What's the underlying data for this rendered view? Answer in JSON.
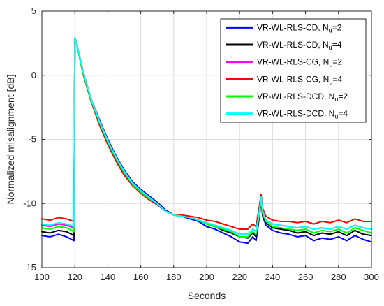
{
  "chart_data": {
    "type": "line",
    "xlabel": "Seconds",
    "ylabel": "Normalized misalignment [dB]",
    "xlim": [
      100,
      300
    ],
    "ylim": [
      -15,
      5
    ],
    "xticks": [
      100,
      120,
      140,
      160,
      180,
      200,
      220,
      240,
      260,
      280,
      300
    ],
    "yticks": [
      5,
      0,
      -5,
      -10,
      -15
    ],
    "grid": true,
    "legend_position": "top-right",
    "legend": [
      {
        "text": "VR-WL-RLS-CD, N",
        "sub": "u",
        "suffix": "=2",
        "color": "#0000ff"
      },
      {
        "text": "VR-WL-RLS-CD, N",
        "sub": "u",
        "suffix": "=4",
        "color": "#000000"
      },
      {
        "text": "VR-WL-RLS-CG, N",
        "sub": "u",
        "suffix": "=2",
        "color": "#ff00ff"
      },
      {
        "text": "VR-WL-RLS-CG, N",
        "sub": "u",
        "suffix": "=4",
        "color": "#ff0000"
      },
      {
        "text": "VR-WL-RLS-DCD, N",
        "sub": "u",
        "suffix": "=2",
        "color": "#00ff00"
      },
      {
        "text": "VR-WL-RLS-DCD, N",
        "sub": "u",
        "suffix": "=4",
        "color": "#00ffff"
      }
    ],
    "x": [
      100,
      105,
      110,
      115,
      119.5,
      120,
      121,
      122,
      125,
      130,
      135,
      140,
      145,
      150,
      155,
      160,
      165,
      170,
      175,
      180,
      185,
      190,
      195,
      200,
      205,
      210,
      215,
      220,
      225,
      228,
      230,
      232,
      233,
      234,
      236,
      240,
      245,
      250,
      255,
      260,
      265,
      270,
      275,
      280,
      285,
      290,
      295,
      300
    ],
    "series": [
      {
        "color": "#0000ff",
        "values": [
          -12.5,
          -12.6,
          -12.4,
          -12.6,
          -12.9,
          2.9,
          2.6,
          2.0,
          0.3,
          -1.9,
          -3.5,
          -5.0,
          -6.3,
          -7.4,
          -8.3,
          -8.9,
          -9.4,
          -9.9,
          -10.5,
          -10.9,
          -11.0,
          -11.2,
          -11.4,
          -11.8,
          -12.0,
          -12.3,
          -12.6,
          -13.0,
          -13.1,
          -12.6,
          -12.9,
          -11.0,
          -9.8,
          -11.0,
          -11.7,
          -12.1,
          -12.3,
          -12.4,
          -12.6,
          -12.5,
          -12.9,
          -12.7,
          -12.8,
          -12.6,
          -12.9,
          -12.5,
          -12.8,
          -13.0
        ]
      },
      {
        "color": "#000000",
        "values": [
          -12.2,
          -12.3,
          -12.1,
          -12.2,
          -12.5,
          2.9,
          2.6,
          1.9,
          0.2,
          -2.0,
          -3.7,
          -5.2,
          -6.5,
          -7.6,
          -8.5,
          -9.1,
          -9.6,
          -10.0,
          -10.6,
          -10.9,
          -11.0,
          -11.1,
          -11.3,
          -11.6,
          -11.8,
          -12.1,
          -12.3,
          -12.6,
          -12.7,
          -12.3,
          -12.6,
          -10.9,
          -9.7,
          -10.9,
          -11.5,
          -11.9,
          -12.0,
          -12.1,
          -12.3,
          -12.2,
          -12.5,
          -12.3,
          -12.4,
          -12.2,
          -12.5,
          -12.1,
          -12.4,
          -12.5
        ]
      },
      {
        "color": "#ff00ff",
        "values": [
          -11.7,
          -11.8,
          -11.6,
          -11.7,
          -11.9,
          2.9,
          2.6,
          1.9,
          0.2,
          -2.0,
          -3.7,
          -5.2,
          -6.5,
          -7.6,
          -8.5,
          -9.1,
          -9.6,
          -10.0,
          -10.6,
          -10.9,
          -11.0,
          -11.1,
          -11.3,
          -11.5,
          -11.7,
          -11.9,
          -12.1,
          -12.4,
          -12.4,
          -12.0,
          -12.2,
          -10.7,
          -9.6,
          -10.7,
          -11.3,
          -11.6,
          -11.7,
          -11.8,
          -11.9,
          -11.8,
          -12.0,
          -11.9,
          -12.0,
          -11.8,
          -12.0,
          -11.7,
          -11.9,
          -12.0
        ]
      },
      {
        "color": "#ff0000",
        "values": [
          -11.2,
          -11.3,
          -11.1,
          -11.2,
          -11.4,
          2.9,
          2.6,
          1.9,
          0.1,
          -2.1,
          -3.9,
          -5.4,
          -6.7,
          -7.8,
          -8.6,
          -9.2,
          -9.7,
          -10.1,
          -10.6,
          -10.9,
          -10.9,
          -11.0,
          -11.1,
          -11.3,
          -11.4,
          -11.6,
          -11.8,
          -12.0,
          -12.0,
          -11.6,
          -11.8,
          -10.2,
          -9.3,
          -10.4,
          -11.0,
          -11.3,
          -11.4,
          -11.4,
          -11.5,
          -11.4,
          -11.6,
          -11.4,
          -11.5,
          -11.3,
          -11.5,
          -11.2,
          -11.4,
          -11.4
        ]
      },
      {
        "color": "#00ff00",
        "values": [
          -11.9,
          -12.0,
          -11.8,
          -11.9,
          -12.2,
          2.9,
          2.6,
          1.9,
          0.2,
          -2.0,
          -3.7,
          -5.2,
          -6.5,
          -7.6,
          -8.5,
          -9.1,
          -9.6,
          -10.0,
          -10.6,
          -10.9,
          -11.0,
          -11.1,
          -11.3,
          -11.6,
          -11.8,
          -12.0,
          -12.2,
          -12.6,
          -12.6,
          -12.2,
          -12.4,
          -10.8,
          -9.7,
          -10.8,
          -11.4,
          -11.8,
          -11.9,
          -12.0,
          -12.1,
          -12.0,
          -12.3,
          -12.1,
          -12.2,
          -12.0,
          -12.3,
          -11.9,
          -12.1,
          -12.3
        ]
      },
      {
        "color": "#00ffff",
        "values": [
          -11.6,
          -11.7,
          -11.5,
          -11.6,
          -11.8,
          2.9,
          2.6,
          2.0,
          0.3,
          -1.9,
          -3.6,
          -5.1,
          -6.4,
          -7.5,
          -8.4,
          -9.0,
          -9.5,
          -10.0,
          -10.6,
          -10.9,
          -11.0,
          -11.1,
          -11.3,
          -11.5,
          -11.7,
          -11.9,
          -12.1,
          -12.4,
          -12.4,
          -12.0,
          -12.2,
          -10.6,
          -9.5,
          -10.6,
          -11.3,
          -11.6,
          -11.7,
          -11.8,
          -11.9,
          -11.8,
          -12.0,
          -11.9,
          -12.0,
          -11.8,
          -12.0,
          -11.7,
          -11.9,
          -12.0
        ]
      }
    ]
  }
}
